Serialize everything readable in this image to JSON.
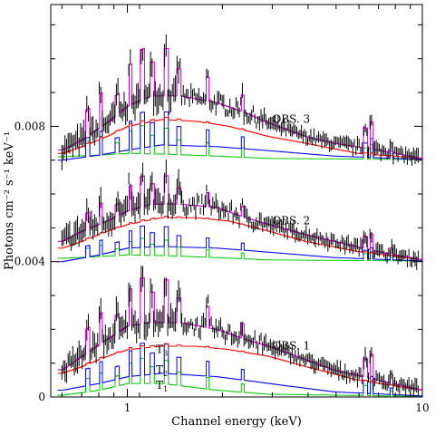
{
  "chart_data": {
    "type": "line",
    "xlabel": "Channel energy (keV)",
    "ylabel": "Photons cm⁻² s⁻¹ keV⁻¹",
    "x_scale": "log",
    "xlim": [
      0.55,
      10
    ],
    "ylim": [
      0,
      0.0116
    ],
    "x_ticks": [
      1,
      10
    ],
    "x_tick_labels": [
      "1",
      "10"
    ],
    "y_ticks": [
      0,
      0.004,
      0.008
    ],
    "y_tick_labels": [
      "0",
      "0.004",
      "0.008"
    ],
    "grid": false,
    "colors": {
      "data": "#000000",
      "total_model": "#e000e0",
      "T3": "#ff0000",
      "T2": "#0000ff",
      "T1": "#00cc00",
      "frame": "#000000"
    },
    "panel_labels": [
      "OBS. 3",
      "OBS. 2",
      "OBS. 1"
    ],
    "component_labels": [
      {
        "name": "T",
        "sub": "3"
      },
      {
        "name": "T",
        "sub": "2"
      },
      {
        "name": "T",
        "sub": "1"
      }
    ],
    "panels": [
      {
        "name": "OBS. 3",
        "baseline": 0.007,
        "t1": {
          "x": [
            0.6,
            0.8,
            1.0,
            1.3,
            2.0,
            3.0,
            10
          ],
          "y": [
            0.0071,
            0.00715,
            0.0072,
            0.00718,
            0.00712,
            0.00705,
            0.00702
          ]
        },
        "t2": {
          "x": [
            0.6,
            0.8,
            1.0,
            1.3,
            2.0,
            3.0,
            5.0,
            10
          ],
          "y": [
            0.007,
            0.00715,
            0.0073,
            0.00745,
            0.0074,
            0.00728,
            0.00712,
            0.00702
          ]
        },
        "t3": {
          "x": [
            0.6,
            0.7,
            0.85,
            1.0,
            1.3,
            1.7,
            2.2,
            3.0,
            4.0,
            6.0,
            10
          ],
          "y": [
            0.0072,
            0.0074,
            0.0077,
            0.008,
            0.0082,
            0.00815,
            0.008,
            0.0077,
            0.0075,
            0.0072,
            0.00705
          ]
        },
        "model": {
          "x": [
            0.6,
            0.7,
            0.85,
            1.0,
            1.2,
            1.5,
            2.0,
            2.5,
            3.0,
            4.0,
            5.0,
            7.0,
            10
          ],
          "y": [
            0.0073,
            0.0076,
            0.0081,
            0.0086,
            0.0089,
            0.0089,
            0.0087,
            0.0084,
            0.0081,
            0.0077,
            0.0075,
            0.0073,
            0.00705
          ]
        }
      },
      {
        "name": "OBS. 2",
        "baseline": 0.004,
        "t1": {
          "x": [
            0.6,
            0.8,
            1.0,
            1.3,
            2.0,
            3.0,
            10
          ],
          "y": [
            0.0041,
            0.00415,
            0.0042,
            0.00418,
            0.00412,
            0.00405,
            0.00402
          ]
        },
        "t2": {
          "x": [
            0.6,
            0.8,
            1.0,
            1.3,
            2.0,
            3.0,
            5.0,
            10
          ],
          "y": [
            0.004,
            0.0042,
            0.0044,
            0.00445,
            0.0044,
            0.00428,
            0.00412,
            0.00402
          ]
        },
        "t3": {
          "x": [
            0.6,
            0.7,
            0.85,
            1.0,
            1.3,
            1.7,
            2.2,
            3.0,
            4.0,
            6.0,
            10
          ],
          "y": [
            0.0044,
            0.0046,
            0.0049,
            0.0051,
            0.0053,
            0.0053,
            0.0052,
            0.0049,
            0.0046,
            0.0043,
            0.00405
          ]
        },
        "model": {
          "x": [
            0.6,
            0.7,
            0.85,
            1.0,
            1.2,
            1.5,
            2.0,
            2.5,
            3.0,
            4.0,
            5.0,
            7.0,
            10
          ],
          "y": [
            0.0046,
            0.0049,
            0.0052,
            0.0055,
            0.0057,
            0.0057,
            0.0056,
            0.0053,
            0.0051,
            0.0048,
            0.0046,
            0.0043,
            0.00405
          ]
        }
      },
      {
        "name": "OBS. 1",
        "baseline": 0.0,
        "t1": {
          "x": [
            0.6,
            0.8,
            1.0,
            1.3,
            2.0,
            3.0,
            10
          ],
          "y": [
            5e-05,
            0.0002,
            0.0004,
            0.0004,
            0.0002,
            8e-05,
            2e-05
          ]
        },
        "t2": {
          "x": [
            0.6,
            0.8,
            1.0,
            1.3,
            2.0,
            3.0,
            5.0,
            10
          ],
          "y": [
            0.0002,
            0.0004,
            0.0006,
            0.0007,
            0.0006,
            0.0004,
            0.00015,
            3e-05
          ]
        },
        "t3": {
          "x": [
            0.6,
            0.7,
            0.85,
            1.0,
            1.3,
            1.7,
            2.2,
            3.0,
            4.0,
            6.0,
            10
          ],
          "y": [
            0.0007,
            0.0009,
            0.0012,
            0.0014,
            0.0015,
            0.0015,
            0.0014,
            0.0012,
            0.0009,
            0.0005,
            0.0002
          ]
        },
        "model": {
          "x": [
            0.6,
            0.7,
            0.85,
            1.0,
            1.2,
            1.5,
            2.0,
            2.5,
            3.0,
            4.0,
            5.0,
            7.0,
            10
          ],
          "y": [
            0.0008,
            0.0012,
            0.0017,
            0.0021,
            0.0022,
            0.0022,
            0.002,
            0.0017,
            0.0015,
            0.0011,
            0.0008,
            0.0005,
            0.0002
          ]
        }
      }
    ],
    "lines": [
      {
        "E": 0.73,
        "h": 0.0008
      },
      {
        "E": 0.81,
        "h": 0.001
      },
      {
        "E": 0.92,
        "h": 0.0006
      },
      {
        "E": 1.02,
        "h": 0.0012
      },
      {
        "E": 1.12,
        "h": 0.0015
      },
      {
        "E": 1.21,
        "h": 0.001
      },
      {
        "E": 1.35,
        "h": 0.0014
      },
      {
        "E": 1.49,
        "h": 0.0008
      },
      {
        "E": 1.86,
        "h": 0.0007
      },
      {
        "E": 2.45,
        "h": 0.0005
      },
      {
        "E": 6.4,
        "h": 0.0006
      },
      {
        "E": 6.7,
        "h": 0.0008
      },
      {
        "E": 7.8,
        "h": 0.0003
      }
    ]
  }
}
